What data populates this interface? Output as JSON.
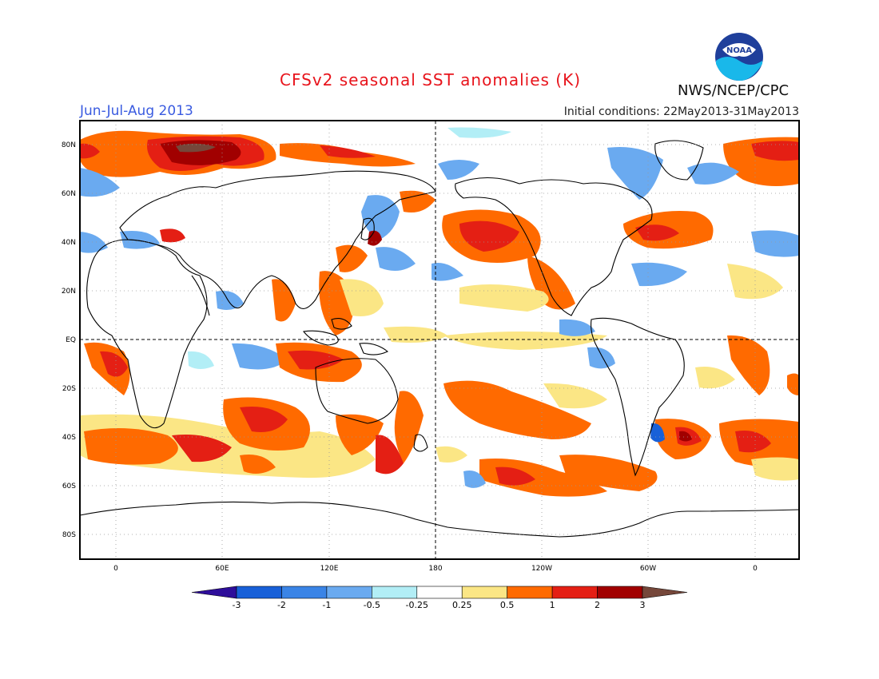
{
  "header": {
    "title": "CFSv2 seasonal SST anomalies (K)",
    "period": "Jun-Jul-Aug 2013",
    "initial_conditions": "Initial conditions: 22May2013-31May2013",
    "agency": "NWS/NCEP/CPC",
    "logo_text": "NOAA"
  },
  "map": {
    "lat_labels": [
      "80N",
      "60N",
      "40N",
      "20N",
      "EQ",
      "20S",
      "40S",
      "60S",
      "80S"
    ],
    "lon_labels": [
      "0",
      "60E",
      "120E",
      "180",
      "120W",
      "60W",
      "0"
    ]
  },
  "legend": {
    "labels": [
      "-3",
      "-2",
      "-1",
      "-0.5",
      "-0.25",
      "0.25",
      "0.5",
      "1",
      "2",
      "3"
    ],
    "colors": [
      "#2e0e9a",
      "#1860d8",
      "#3a84e6",
      "#6aaaf0",
      "#b2eef6",
      "#ffffff",
      "#fbe685",
      "#ff6a00",
      "#e41f14",
      "#a10000",
      "#75473a"
    ]
  },
  "colors": {
    "title": "#e8141c",
    "period": "#3a5be0",
    "land_outline": "#000000"
  }
}
